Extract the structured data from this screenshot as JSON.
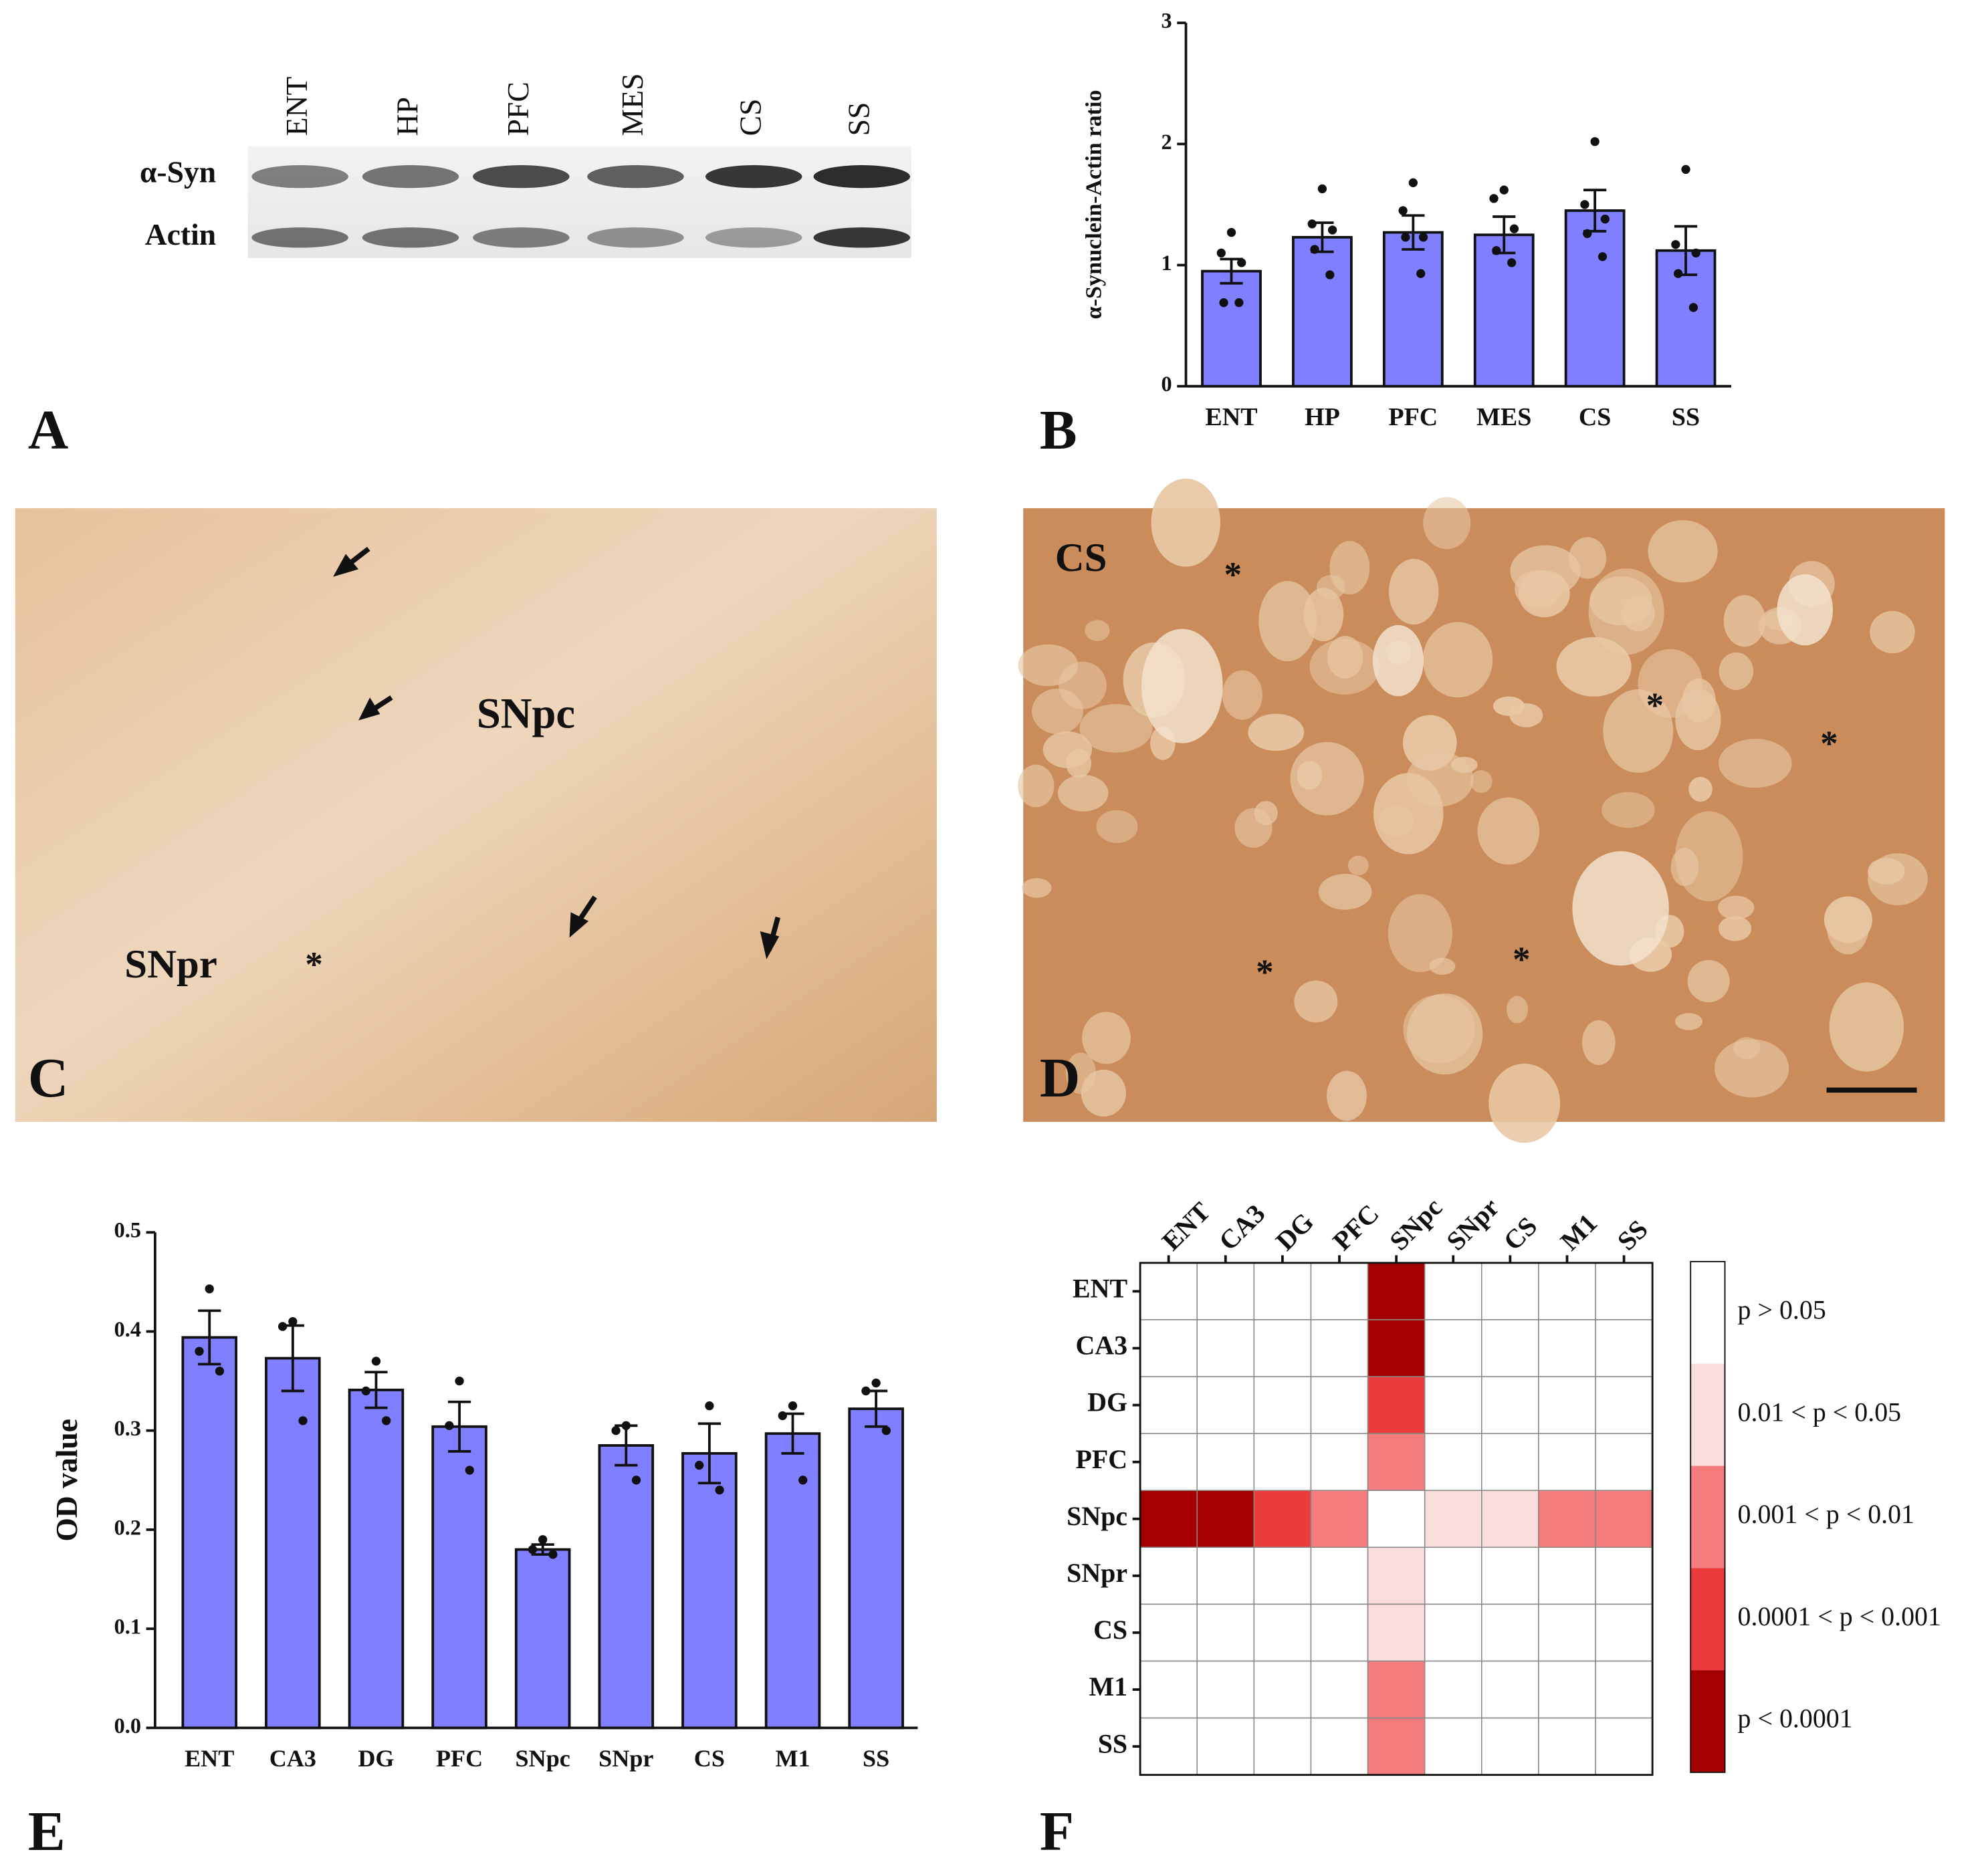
{
  "panels": {
    "labels": [
      "A",
      "B",
      "C",
      "D",
      "E",
      "F"
    ]
  },
  "blot": {
    "lanes": [
      "ENT",
      "HP",
      "PFC",
      "MES",
      "CS",
      "SS"
    ],
    "rows": [
      "α-Syn",
      "Actin"
    ]
  },
  "micrograph_c": {
    "labels": [
      "SNpc",
      "SNpr",
      "*"
    ]
  },
  "micrograph_d": {
    "labels": [
      "CS",
      "*",
      "*",
      "*",
      "*",
      "*"
    ]
  },
  "chart_data": [
    {
      "type": "bar",
      "y_label": "α-Synuclein-Actin ratio",
      "categories": [
        "ENT",
        "HP",
        "PFC",
        "MES",
        "CS",
        "SS"
      ],
      "values": [
        0.95,
        1.23,
        1.27,
        1.25,
        1.45,
        1.12
      ],
      "errors": [
        0.1,
        0.12,
        0.14,
        0.15,
        0.17,
        0.2
      ],
      "points": [
        [
          1.27,
          1.1,
          1.02,
          0.69,
          0.69
        ],
        [
          1.63,
          1.34,
          1.29,
          1.13,
          0.92
        ],
        [
          1.68,
          1.45,
          1.23,
          1.23,
          0.93
        ],
        [
          1.62,
          1.55,
          1.3,
          1.12,
          1.02
        ],
        [
          2.02,
          1.5,
          1.38,
          1.26,
          1.07
        ],
        [
          1.79,
          1.17,
          1.1,
          0.93,
          0.65
        ]
      ],
      "color": "#7f7fff",
      "ylim": [
        0,
        3
      ],
      "yticks": [
        0,
        1,
        2,
        3
      ]
    },
    {
      "type": "bar",
      "y_label": "OD value",
      "categories": [
        "ENT",
        "CA3",
        "DG",
        "PFC",
        "SNpc",
        "SNpr",
        "CS",
        "M1",
        "SS"
      ],
      "values": [
        0.394,
        0.373,
        0.341,
        0.304,
        0.18,
        0.285,
        0.277,
        0.297,
        0.322
      ],
      "errors": [
        0.027,
        0.033,
        0.018,
        0.025,
        0.005,
        0.02,
        0.03,
        0.02,
        0.018
      ],
      "points": [
        [
          0.443,
          0.38,
          0.36
        ],
        [
          0.41,
          0.405,
          0.31
        ],
        [
          0.37,
          0.34,
          0.31
        ],
        [
          0.35,
          0.305,
          0.26
        ],
        [
          0.19,
          0.18,
          0.175
        ],
        [
          0.305,
          0.3,
          0.25
        ],
        [
          0.325,
          0.265,
          0.24
        ],
        [
          0.325,
          0.315,
          0.25
        ],
        [
          0.348,
          0.34,
          0.3
        ]
      ],
      "color": "#7f7fff",
      "ylim": [
        0,
        0.5
      ],
      "yticks": [
        {
          "value": 0,
          "label": "0.0"
        },
        0.1,
        0.2,
        0.3,
        0.4,
        0.5
      ]
    },
    {
      "type": "heatmap",
      "categories": [
        "ENT",
        "CA3",
        "DG",
        "PFC",
        "SNpc",
        "SNpr",
        "CS",
        "M1",
        "SS"
      ],
      "levels": [
        {
          "label": "p > 0.05",
          "color": "#ffffff"
        },
        {
          "label": "0.01 < p < 0.05",
          "color": "#f9dcdc"
        },
        {
          "label": "0.001 < p < 0.01",
          "color": "#f47c7c"
        },
        {
          "label": "0.0001 < p < 0.001",
          "color": "#ec3b3b"
        },
        {
          "label": "p < 0.0001",
          "color": "#a50000"
        }
      ],
      "cells": [
        [
          0,
          0,
          0,
          0,
          4,
          0,
          0,
          0,
          0
        ],
        [
          0,
          0,
          0,
          0,
          4,
          0,
          0,
          0,
          0
        ],
        [
          0,
          0,
          0,
          0,
          3,
          0,
          0,
          0,
          0
        ],
        [
          0,
          0,
          0,
          0,
          2,
          0,
          0,
          0,
          0
        ],
        [
          4,
          4,
          3,
          2,
          0,
          1,
          1,
          2,
          2
        ],
        [
          0,
          0,
          0,
          0,
          1,
          0,
          0,
          0,
          0
        ],
        [
          0,
          0,
          0,
          0,
          1,
          0,
          0,
          0,
          0
        ],
        [
          0,
          0,
          0,
          0,
          2,
          0,
          0,
          0,
          0
        ],
        [
          0,
          0,
          0,
          0,
          2,
          0,
          0,
          0,
          0
        ]
      ]
    }
  ]
}
